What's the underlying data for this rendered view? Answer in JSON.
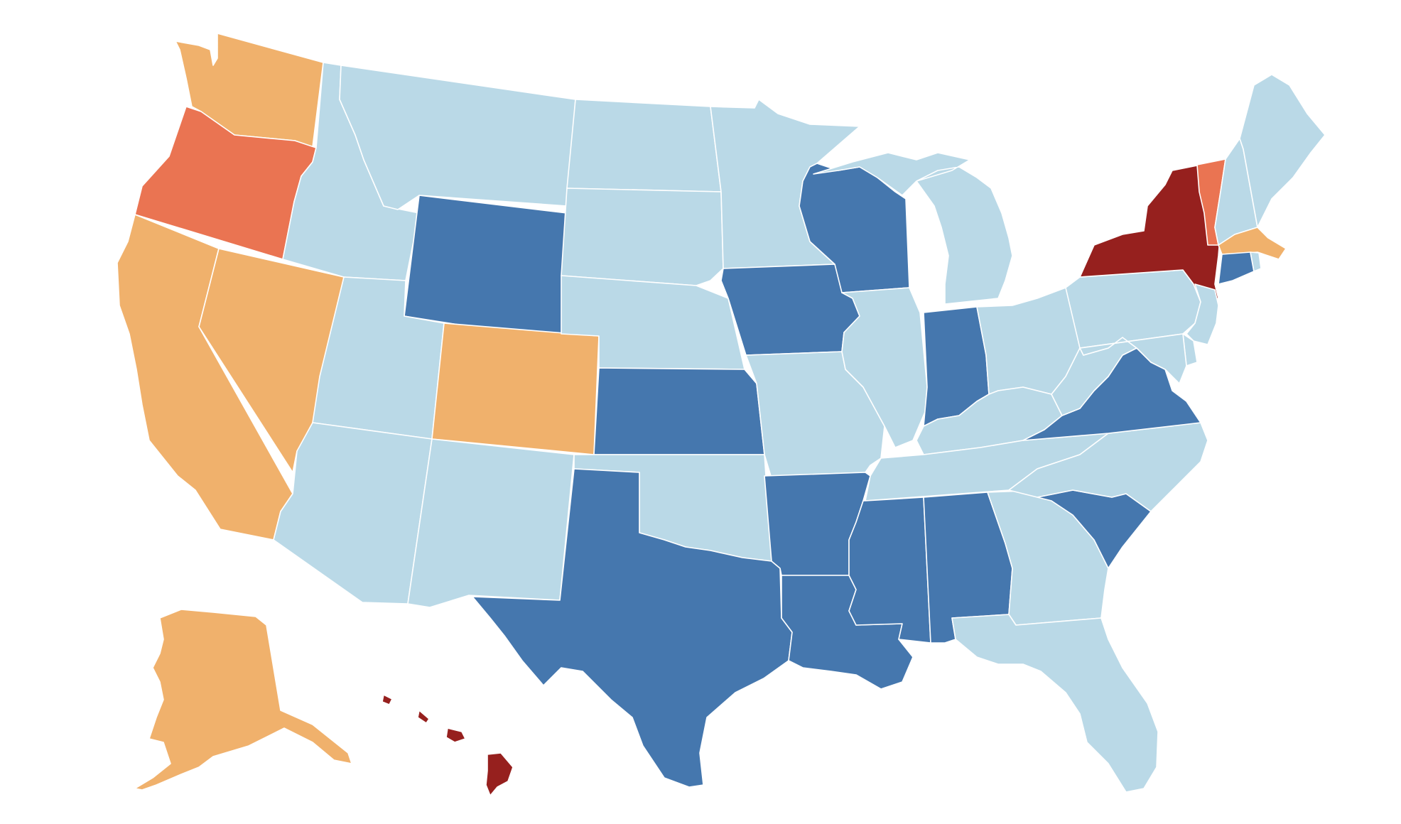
{
  "map": {
    "colors": {
      "very_high": "#96201e",
      "high": "#ea7452",
      "elevated": "#f0b16c",
      "low": "#bad9e7",
      "very_low": "#4577ae"
    },
    "states": {
      "WA": "elevated",
      "OR": "high",
      "CA": "elevated",
      "NV": "elevated",
      "AK": "elevated",
      "ID": "low",
      "MT": "low",
      "WY": "very_low",
      "UT": "low",
      "CO": "elevated",
      "AZ": "low",
      "NM": "low",
      "ND": "low",
      "SD": "low",
      "NE": "low",
      "KS": "very_low",
      "OK": "low",
      "TX": "very_low",
      "MN": "low",
      "IA": "very_low",
      "MO": "low",
      "AR": "very_low",
      "LA": "very_low",
      "WI": "very_low",
      "IL": "low",
      "MI": "low",
      "IN": "very_low",
      "OH": "low",
      "KY": "low",
      "TN": "low",
      "MS": "very_low",
      "AL": "very_low",
      "GA": "low",
      "FL": "low",
      "SC": "very_low",
      "NC": "low",
      "VA": "very_low",
      "WV": "low",
      "PA": "low",
      "NY": "very_high",
      "VT": "high",
      "NH": "low",
      "ME": "low",
      "MA": "elevated",
      "RI": "low",
      "CT": "very_low",
      "NJ": "low",
      "DE": "low",
      "MD": "low",
      "HI": "very_high"
    }
  }
}
